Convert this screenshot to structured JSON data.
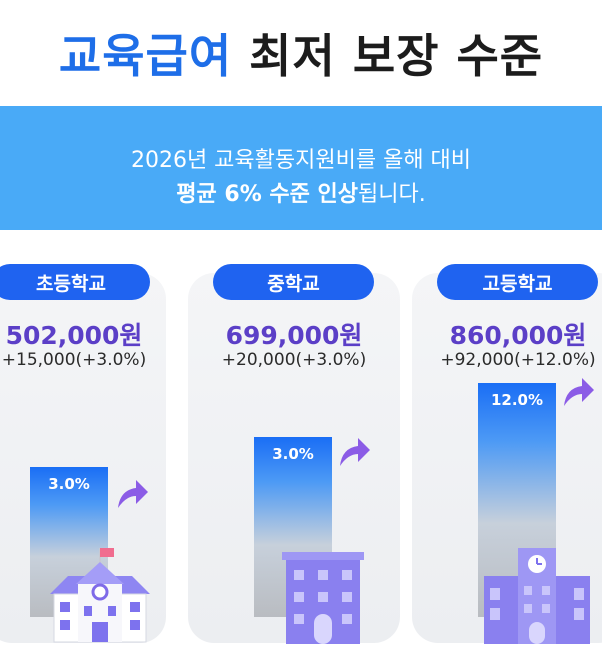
{
  "title": {
    "accent": "교육급여",
    "rest": "최저 보장 수준"
  },
  "banner": {
    "line1": "2026년 교육활동지원비를 올해 대비",
    "line2_bold": "평균 6% 수준 인상",
    "line2_rest": "됩니다."
  },
  "cards": [
    {
      "label": "초등학교",
      "amount": "502,000원",
      "change": "+15,000(+3.0%)",
      "bar_label": "3.0%",
      "icon": "school-building-icon"
    },
    {
      "label": "중학교",
      "amount": "699,000원",
      "change": "+20,000(+3.0%)",
      "bar_label": "3.0%",
      "icon": "office-building-icon"
    },
    {
      "label": "고등학교",
      "amount": "860,000원",
      "change": "+92,000(+12.0%)",
      "bar_label": "12.0%",
      "icon": "tall-building-icon"
    }
  ],
  "colors": {
    "accent": "#1e6ee8",
    "banner": "#49aaf7",
    "pill": "#1f63f0",
    "amount": "#5b3fc7",
    "arrow": "#8b5ce6"
  }
}
